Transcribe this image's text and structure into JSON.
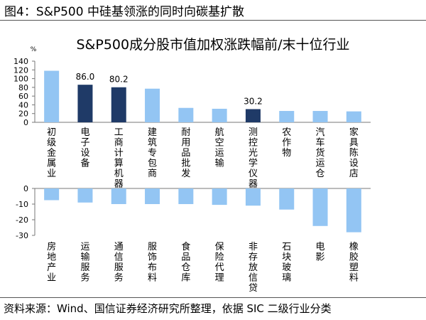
{
  "figure_title": "图4：S&P500 中硅基领涨的同时向碳基扩散",
  "source_note": "资料来源：Wind、国信证券经济研究所整理，依据 SIC 二级行业分类",
  "colors": {
    "bar_light": "#93C5F3",
    "bar_dark": "#1F3A67",
    "axis": "#777777",
    "rule": "#555555"
  },
  "chart_data": [
    {
      "type": "bar",
      "title": "S&P500成分股市值加权涨跌幅前/末十位行业",
      "unit_label": "%",
      "ylim": [
        0,
        140
      ],
      "yticks": [
        0,
        20,
        40,
        60,
        80,
        100,
        120,
        140
      ],
      "grid": false,
      "categories": [
        "初级金属业",
        "电子设备",
        "工商计算机器",
        "建筑专包商",
        "耐用品批发",
        "航空运输",
        "测控光学仪器",
        "农作物",
        "汽车货运仓",
        "家具陈设店"
      ],
      "values": [
        118,
        86.0,
        80.2,
        77,
        33,
        31,
        30.2,
        26,
        26,
        25
      ],
      "highlight": [
        false,
        true,
        true,
        false,
        false,
        false,
        true,
        false,
        false,
        false
      ],
      "data_labels": [
        "",
        "86.0",
        "80.2",
        "",
        "",
        "",
        "30.2",
        "",
        "",
        ""
      ]
    },
    {
      "type": "bar",
      "title": "",
      "ylim": [
        -30,
        0
      ],
      "yticks": [
        0,
        -10,
        -20,
        -30
      ],
      "grid": false,
      "categories": [
        "房地产业",
        "运输服务",
        "通信服务",
        "服饰布料",
        "食品仓库",
        "保险代理",
        "非存放信贷",
        "石块玻璃",
        "电影",
        "橡胶塑料"
      ],
      "values": [
        -7.5,
        -9,
        -10,
        -10,
        -10,
        -10.5,
        -11,
        -13.5,
        -24,
        -28
      ],
      "highlight": [
        false,
        false,
        false,
        false,
        false,
        false,
        false,
        false,
        false,
        false
      ],
      "data_labels": [
        "",
        "",
        "",
        "",
        "",
        "",
        "",
        "",
        "",
        ""
      ]
    }
  ]
}
